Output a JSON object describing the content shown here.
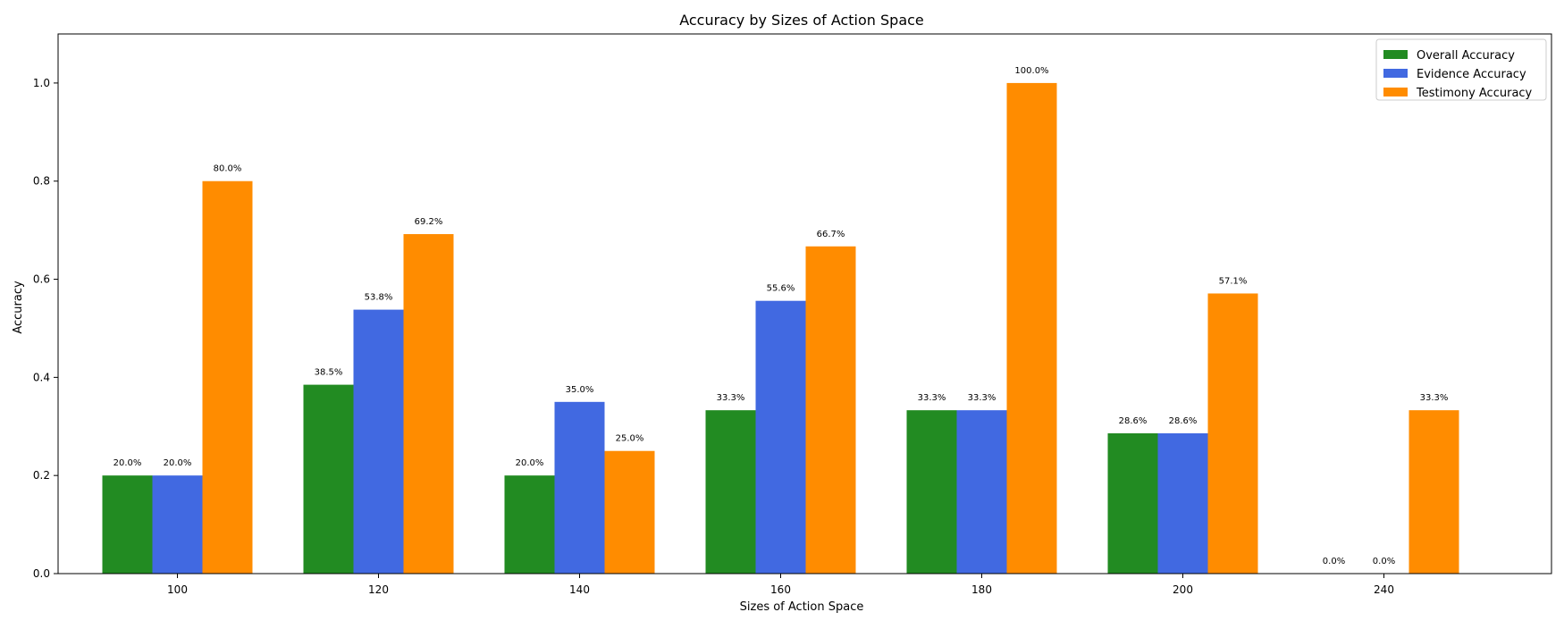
{
  "chart_data": {
    "type": "bar",
    "title": "Accuracy by Sizes of Action Space",
    "xlabel": "Sizes of Action Space",
    "ylabel": "Accuracy",
    "categories": [
      "100",
      "120",
      "140",
      "160",
      "180",
      "200",
      "240"
    ],
    "ylim": [
      0,
      1.1
    ],
    "yticks": [
      "0.0",
      "0.2",
      "0.4",
      "0.6",
      "0.8",
      "1.0"
    ],
    "grid": false,
    "legend_position": "top-right",
    "series": [
      {
        "name": "Overall Accuracy",
        "color": "#228b22",
        "values": [
          0.2,
          0.385,
          0.2,
          0.333,
          0.333,
          0.286,
          0.0
        ],
        "labels": [
          "20.0%",
          "38.5%",
          "20.0%",
          "33.3%",
          "33.3%",
          "28.6%",
          "0.0%"
        ]
      },
      {
        "name": "Evidence Accuracy",
        "color": "#4169e1",
        "values": [
          0.2,
          0.538,
          0.35,
          0.556,
          0.333,
          0.286,
          0.0
        ],
        "labels": [
          "20.0%",
          "53.8%",
          "35.0%",
          "55.6%",
          "33.3%",
          "28.6%",
          "0.0%"
        ]
      },
      {
        "name": "Testimony Accuracy",
        "color": "#ff8c00",
        "values": [
          0.8,
          0.692,
          0.25,
          0.667,
          1.0,
          0.571,
          0.333
        ],
        "labels": [
          "80.0%",
          "69.2%",
          "25.0%",
          "66.7%",
          "100.0%",
          "57.1%",
          "33.3%"
        ]
      }
    ]
  }
}
